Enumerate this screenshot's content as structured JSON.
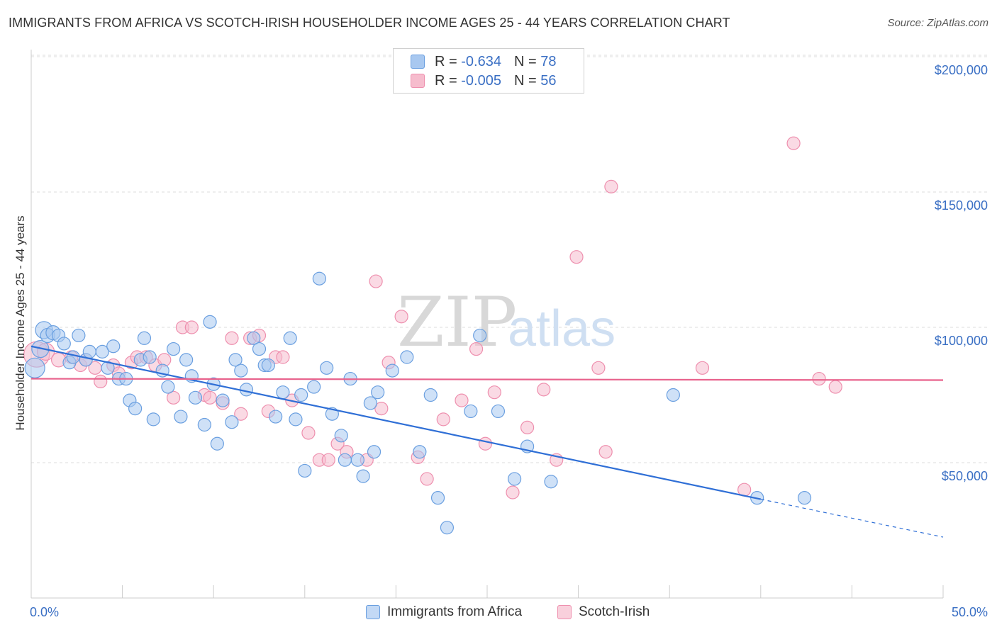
{
  "header": {
    "title": "IMMIGRANTS FROM AFRICA VS SCOTCH-IRISH HOUSEHOLDER INCOME AGES 25 - 44 YEARS CORRELATION CHART",
    "source": "Source: ZipAtlas.com"
  },
  "legend": {
    "rows": [
      {
        "r_label": "R =",
        "r_value": "-0.634",
        "n_label": "N =",
        "n_value": "78"
      },
      {
        "r_label": "R =",
        "r_value": "-0.005",
        "n_label": "N =",
        "n_value": "56"
      }
    ]
  },
  "bottom_legend": {
    "series1": "Immigrants from Africa",
    "series2": "Scotch-Irish"
  },
  "watermark": {
    "part1": "ZIP",
    "part2": "atlas"
  },
  "colors": {
    "blue_fill": "#a8c8f0",
    "blue_stroke": "#6a9fe0",
    "blue_line": "#2f6fd6",
    "pink_fill": "#f6bccd",
    "pink_stroke": "#ee8fae",
    "pink_line": "#e8628c",
    "accent_text": "#3a6fc4",
    "grid": "#dddddd"
  },
  "chart_data": {
    "type": "scatter",
    "title": "IMMIGRANTS FROM AFRICA VS SCOTCH-IRISH HOUSEHOLDER INCOME AGES 25 - 44 YEARS CORRELATION CHART",
    "xlabel": "",
    "ylabel": "Householder Income Ages 25 - 44 years",
    "xlim": [
      0,
      50
    ],
    "ylim": [
      0,
      210000
    ],
    "x_tick_labels": [
      "0.0%",
      "50.0%"
    ],
    "y_ticks": [
      50000,
      100000,
      150000,
      200000
    ],
    "y_tick_labels": [
      "$50,000",
      "$100,000",
      "$150,000",
      "$200,000"
    ],
    "grid": true,
    "legend_position": "top-center",
    "series": [
      {
        "name": "Immigrants from Africa",
        "r": -0.634,
        "n": 78,
        "trend": {
          "x0": 0,
          "y0": 93000,
          "x1": 40,
          "y1": 36500,
          "dash_to_x": 50,
          "dash_to_y": 22500
        },
        "points": [
          [
            0.2,
            85000,
            14
          ],
          [
            0.5,
            92000,
            12
          ],
          [
            0.7,
            99000,
            12
          ],
          [
            0.9,
            97000,
            10
          ],
          [
            1.2,
            98000,
            10
          ],
          [
            1.5,
            97000,
            9
          ],
          [
            1.8,
            94000,
            9
          ],
          [
            2.1,
            87000,
            9
          ],
          [
            2.3,
            89000,
            9
          ],
          [
            2.6,
            97000,
            9
          ],
          [
            3.0,
            88000,
            9
          ],
          [
            3.2,
            91000,
            9
          ],
          [
            3.9,
            91000,
            9
          ],
          [
            4.2,
            85000,
            9
          ],
          [
            4.5,
            93000,
            9
          ],
          [
            4.8,
            81000,
            9
          ],
          [
            5.2,
            81000,
            9
          ],
          [
            5.4,
            73000,
            9
          ],
          [
            5.7,
            70000,
            9
          ],
          [
            6.0,
            88000,
            9
          ],
          [
            6.2,
            96000,
            9
          ],
          [
            6.5,
            89000,
            9
          ],
          [
            6.7,
            66000,
            9
          ],
          [
            7.2,
            84000,
            9
          ],
          [
            7.5,
            78000,
            9
          ],
          [
            7.8,
            92000,
            9
          ],
          [
            8.2,
            67000,
            9
          ],
          [
            8.5,
            88000,
            9
          ],
          [
            8.8,
            82000,
            9
          ],
          [
            9.0,
            74000,
            9
          ],
          [
            9.5,
            64000,
            9
          ],
          [
            9.8,
            102000,
            9
          ],
          [
            10.0,
            79000,
            9
          ],
          [
            10.2,
            57000,
            9
          ],
          [
            10.5,
            73000,
            9
          ],
          [
            11.0,
            65000,
            9
          ],
          [
            11.2,
            88000,
            9
          ],
          [
            11.5,
            84000,
            9
          ],
          [
            11.8,
            77000,
            9
          ],
          [
            12.2,
            96000,
            9
          ],
          [
            12.5,
            92000,
            9
          ],
          [
            12.8,
            86000,
            9
          ],
          [
            13.0,
            86000,
            9
          ],
          [
            13.4,
            67000,
            9
          ],
          [
            13.8,
            76000,
            9
          ],
          [
            14.2,
            96000,
            9
          ],
          [
            14.5,
            66000,
            9
          ],
          [
            14.8,
            75000,
            9
          ],
          [
            15.0,
            47000,
            9
          ],
          [
            15.5,
            78000,
            9
          ],
          [
            15.8,
            118000,
            9
          ],
          [
            16.2,
            85000,
            9
          ],
          [
            16.5,
            68000,
            9
          ],
          [
            17.0,
            60000,
            9
          ],
          [
            17.2,
            51000,
            9
          ],
          [
            17.5,
            81000,
            9
          ],
          [
            17.9,
            51000,
            9
          ],
          [
            18.2,
            45000,
            9
          ],
          [
            18.6,
            72000,
            9
          ],
          [
            18.8,
            54000,
            9
          ],
          [
            19.0,
            76000,
            9
          ],
          [
            19.8,
            84000,
            9
          ],
          [
            20.6,
            89000,
            9
          ],
          [
            21.3,
            54000,
            9
          ],
          [
            21.9,
            75000,
            9
          ],
          [
            22.3,
            37000,
            9
          ],
          [
            22.8,
            26000,
            9
          ],
          [
            24.1,
            69000,
            9
          ],
          [
            24.6,
            97000,
            9
          ],
          [
            25.6,
            69000,
            9
          ],
          [
            26.5,
            44000,
            9
          ],
          [
            27.2,
            56000,
            9
          ],
          [
            28.5,
            43000,
            9
          ],
          [
            35.2,
            75000,
            9
          ],
          [
            39.8,
            37000,
            9
          ],
          [
            42.4,
            37000,
            9
          ]
        ]
      },
      {
        "name": "Scotch-Irish",
        "r": -0.005,
        "n": 56,
        "trend": {
          "x0": 0,
          "y0": 81000,
          "x1": 50,
          "y1": 80500
        },
        "points": [
          [
            0.3,
            90000,
            18
          ],
          [
            0.8,
            91000,
            12
          ],
          [
            1.5,
            88000,
            10
          ],
          [
            2.2,
            89000,
            9
          ],
          [
            2.7,
            86000,
            9
          ],
          [
            3.0,
            88000,
            9
          ],
          [
            3.5,
            85000,
            9
          ],
          [
            3.8,
            80000,
            9
          ],
          [
            4.5,
            86000,
            9
          ],
          [
            4.8,
            83000,
            9
          ],
          [
            5.5,
            87000,
            9
          ],
          [
            5.8,
            89000,
            9
          ],
          [
            6.3,
            89000,
            9
          ],
          [
            6.8,
            86000,
            9
          ],
          [
            7.3,
            88000,
            9
          ],
          [
            7.8,
            74000,
            9
          ],
          [
            8.3,
            100000,
            9
          ],
          [
            8.8,
            100000,
            9
          ],
          [
            9.5,
            75000,
            9
          ],
          [
            9.8,
            74000,
            9
          ],
          [
            10.5,
            72000,
            9
          ],
          [
            11.0,
            96000,
            9
          ],
          [
            11.5,
            68000,
            9
          ],
          [
            12.0,
            96000,
            9
          ],
          [
            12.5,
            97000,
            9
          ],
          [
            13.0,
            69000,
            9
          ],
          [
            13.4,
            89000,
            9
          ],
          [
            13.8,
            89000,
            9
          ],
          [
            14.3,
            73000,
            9
          ],
          [
            15.2,
            61000,
            9
          ],
          [
            15.8,
            51000,
            9
          ],
          [
            16.3,
            51000,
            9
          ],
          [
            16.8,
            57000,
            9
          ],
          [
            17.3,
            54000,
            9
          ],
          [
            18.4,
            51000,
            9
          ],
          [
            18.9,
            117000,
            9
          ],
          [
            19.2,
            70000,
            9
          ],
          [
            19.6,
            87000,
            9
          ],
          [
            20.3,
            104000,
            9
          ],
          [
            21.2,
            52000,
            9
          ],
          [
            21.7,
            44000,
            9
          ],
          [
            22.6,
            66000,
            9
          ],
          [
            23.6,
            73000,
            9
          ],
          [
            24.4,
            92000,
            9
          ],
          [
            24.9,
            57000,
            9
          ],
          [
            25.4,
            76000,
            9
          ],
          [
            26.4,
            39000,
            9
          ],
          [
            27.2,
            63000,
            9
          ],
          [
            28.1,
            77000,
            9
          ],
          [
            28.8,
            51000,
            9
          ],
          [
            29.9,
            126000,
            9
          ],
          [
            31.1,
            85000,
            9
          ],
          [
            31.5,
            54000,
            9
          ],
          [
            31.8,
            152000,
            9
          ],
          [
            36.8,
            85000,
            9
          ],
          [
            39.1,
            40000,
            9
          ],
          [
            41.8,
            168000,
            9
          ],
          [
            43.2,
            81000,
            9
          ],
          [
            44.1,
            78000,
            9
          ]
        ]
      }
    ]
  }
}
